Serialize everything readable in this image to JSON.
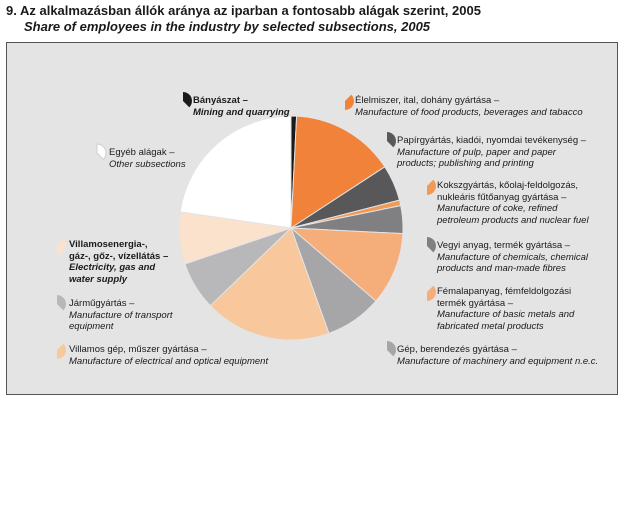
{
  "header": {
    "title": "9. Az alkalmazásban állók aránya az iparban a fontosabb alágak szerint, 2005",
    "subtitle": "Share of employees in the industry by selected subsections, 2005"
  },
  "chart_data": {
    "type": "pie",
    "title": "9. Az alkalmazásban állók aránya az iparban a fontosabb alágak szerint, 2005",
    "subtitle": "Share of employees in the industry by selected subsections, 2005",
    "legend": "around",
    "slices": [
      {
        "hu": "Bányászat –",
        "en": "Mining and quarrying",
        "value": 0.8,
        "color": "#1a1a1a",
        "bold": true
      },
      {
        "hu": "Élelmiszer, ital, dohány gyártása –",
        "en": "Manufacture of food products, beverages and tabacco",
        "value": 15.0,
        "color": "#f0823a",
        "bold": false
      },
      {
        "hu": "Papírgyártás, kiadói, nyomdai tevékenység –",
        "en": "Manufacture of pulp, paper and paper products; publishing and printing",
        "value": 5.2,
        "color": "#58585a",
        "bold": false
      },
      {
        "hu": "Kokszgyártás, kőolaj-feldolgozás, nukleáris fűtőanyag gyártása –",
        "en": "Manufacture of coke, refined petroleum products and nuclear fuel",
        "value": 0.8,
        "color": "#f09a58",
        "bold": false
      },
      {
        "hu": "Vegyi anyag, termék gyártása –",
        "en": "Manufacture of chemicals, chemical products and man-made fibres",
        "value": 4.0,
        "color": "#808082",
        "bold": false
      },
      {
        "hu": "Fémalapanyag, fémfeldolgozási termék gyártása –",
        "en": "Manufacture of basic metals and fabricated metal products",
        "value": 10.5,
        "color": "#f5ad7a",
        "bold": false
      },
      {
        "hu": "Gép, berendezés gyártása –",
        "en": "Manufacture of machinery and equipment n.e.c.",
        "value": 8.2,
        "color": "#a6a6a8",
        "bold": false
      },
      {
        "hu": "Villamos gép, műszer gyártása –",
        "en": "Manufacture of electrical and optical equipment",
        "value": 18.3,
        "color": "#f8c89c",
        "bold": false
      },
      {
        "hu": "Járműgyártás –",
        "en": "Manufacture of transport equipment",
        "value": 7.0,
        "color": "#b8b8ba",
        "bold": false
      },
      {
        "hu": "Villamosenergia-, gáz-, gőz-, vízellátás –",
        "en": "Electricity, gas and water supply",
        "value": 7.5,
        "color": "#fae2cc",
        "bold": true
      },
      {
        "hu": "Egyéb alágak –",
        "en": "Other subsections",
        "value": 22.7,
        "color": "#ffffff",
        "bold": false
      }
    ]
  },
  "labels": [
    {
      "hu": [
        "Bányászat –"
      ],
      "en": [
        "Mining and quarrying"
      ]
    },
    {
      "hu": [
        "Élelmiszer, ital, dohány gyártása –"
      ],
      "en": [
        "Manufacture of food products, beverages and tabacco"
      ]
    },
    {
      "hu": [
        "Papírgyártás, kiadói, nyomdai tevékenység –"
      ],
      "en": [
        "Manufacture of pulp, paper and paper",
        "products; publishing and printing"
      ]
    },
    {
      "hu": [
        "Kokszgyártás, kőolaj-feldolgozás,",
        "nukleáris fűtőanyag gyártása –"
      ],
      "en": [
        "Manufacture of coke, refined",
        "petroleum products and nuclear fuel"
      ]
    },
    {
      "hu": [
        "Vegyi anyag, termék gyártása –"
      ],
      "en": [
        "Manufacture of chemicals, chemical",
        "products and man-made fibres"
      ]
    },
    {
      "hu": [
        "Fémalapanyag, fémfeldolgozási",
        "termék gyártása –"
      ],
      "en": [
        "Manufacture of basic metals and",
        "fabricated metal products"
      ]
    },
    {
      "hu": [
        "Gép, berendezés gyártása –"
      ],
      "en": [
        "Manufacture of machinery and equipment n.e.c."
      ]
    },
    {
      "hu": [
        "Villamos gép, műszer gyártása –"
      ],
      "en": [
        "Manufacture of electrical and optical equipment"
      ]
    },
    {
      "hu": [
        "Járműgyártás –"
      ],
      "en": [
        "Manufacture of transport",
        "equipment"
      ]
    },
    {
      "hu": [
        "Villamosenergia-,",
        "gáz-, gőz-, vízellátás –"
      ],
      "en": [
        "Electricity, gas and",
        "water supply"
      ]
    },
    {
      "hu": [
        "Egyéb alágak –"
      ],
      "en": [
        "Other subsections"
      ]
    }
  ]
}
